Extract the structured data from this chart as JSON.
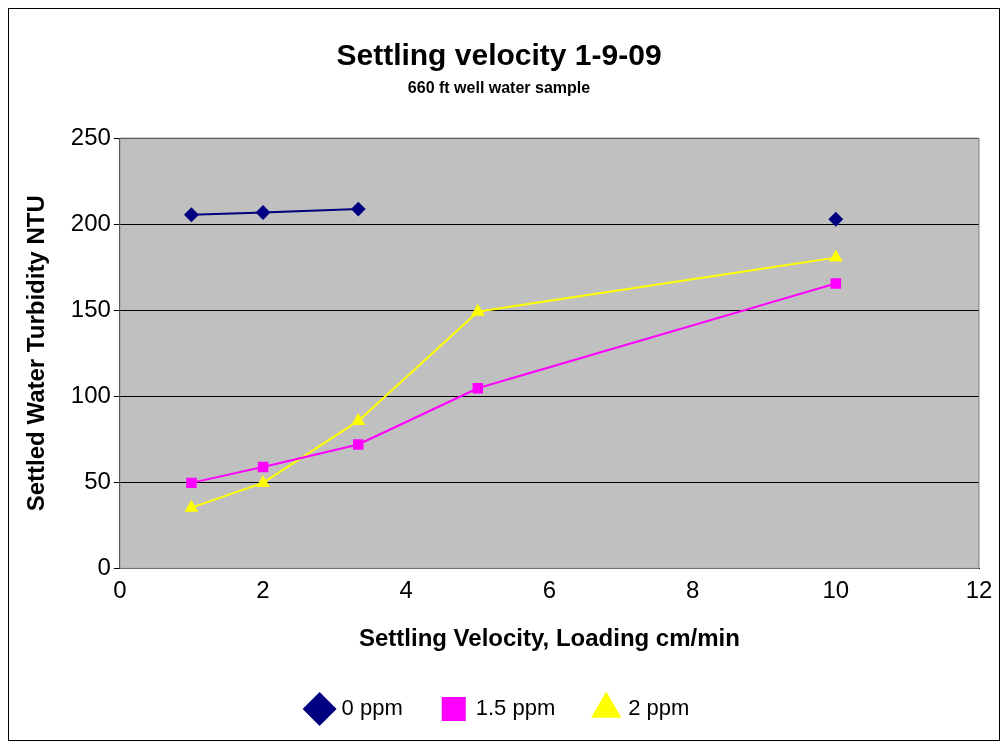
{
  "chart_data": {
    "type": "line",
    "title": "Settling velocity 1-9-09",
    "subtitle": "660 ft well water sample",
    "xlabel": "Settling Velocity, Loading cm/min",
    "ylabel": "Settled Water Turbidity NTU",
    "x": [
      1,
      2,
      3.33,
      5,
      10
    ],
    "series": [
      {
        "name": "0 ppm",
        "color": "#000080",
        "marker": "diamond",
        "values": [
          205.5,
          206.8,
          208.8,
          null,
          202.9
        ]
      },
      {
        "name": "1.5 ppm",
        "color": "#ff00ff",
        "marker": "square",
        "values": [
          49.7,
          58.9,
          72,
          104.7,
          165.6
        ]
      },
      {
        "name": "2 ppm",
        "color": "#ffff00",
        "marker": "triangle",
        "values": [
          35.3,
          49.7,
          85.7,
          149.2,
          180.6
        ]
      }
    ],
    "xlim": [
      0,
      12
    ],
    "xticks": [
      0,
      2,
      4,
      6,
      8,
      10,
      12
    ],
    "ylim": [
      0,
      250
    ],
    "yticks": [
      0,
      50,
      100,
      150,
      200,
      250
    ],
    "grid": "y",
    "legend": "bottom"
  }
}
